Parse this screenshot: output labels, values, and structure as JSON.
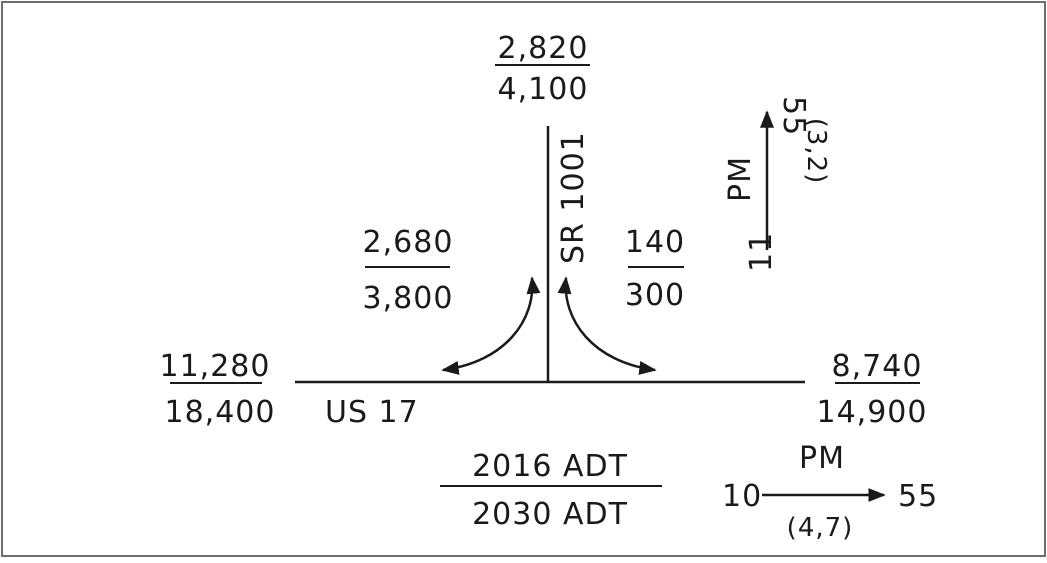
{
  "roads": {
    "main_road_label": "US 17",
    "side_road_label": "SR 1001"
  },
  "volumes": {
    "north_leg": {
      "current": "2,820",
      "future": "4,100"
    },
    "west_leg": {
      "current": "11,280",
      "future": "18,400"
    },
    "east_leg": {
      "current": "8,740",
      "future": "14,900"
    },
    "left_turn": {
      "current": "2,680",
      "future": "3,800"
    },
    "right_turn": {
      "current": "140",
      "future": "300"
    }
  },
  "legend": {
    "current_label": "2016 ADT",
    "future_label": "2030 ADT"
  },
  "peak_hour": {
    "horizontal": {
      "period": "PM",
      "k_factor": "10",
      "d_factor": "55",
      "truck_pcts": "(4,7)"
    },
    "vertical": {
      "period": "PM",
      "k_factor": "11",
      "d_factor": "55",
      "truck_pcts": "(3,2)"
    }
  }
}
